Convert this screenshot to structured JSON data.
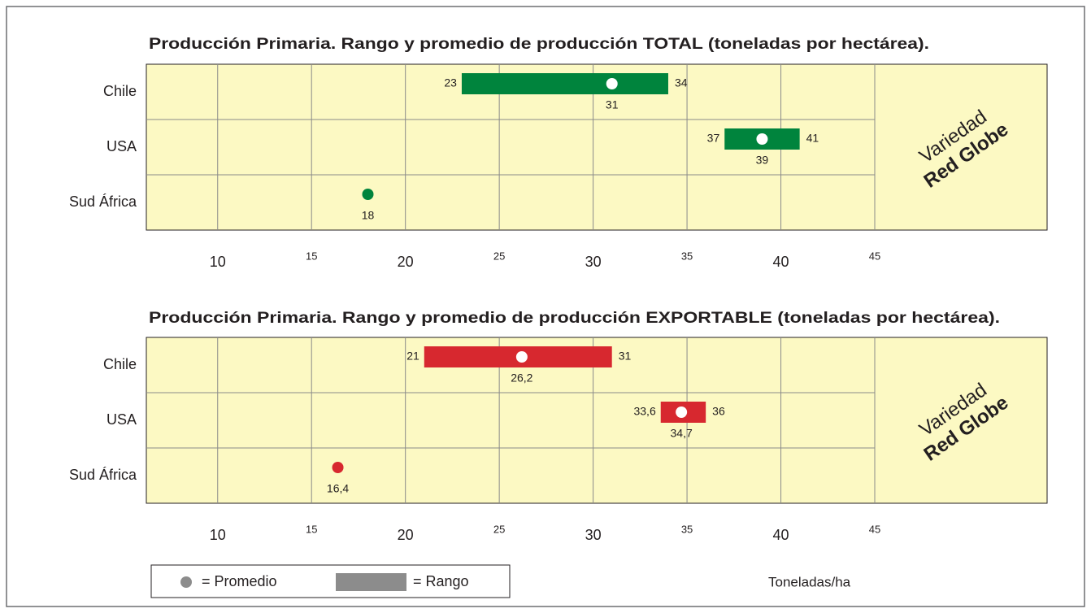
{
  "chart_data": [
    {
      "type": "range",
      "title": "Producción Primaria. Rango y promedio de producción TOTAL (toneladas por hectárea).",
      "categories": [
        "Chile",
        "USA",
        "Sud África"
      ],
      "min": [
        23,
        37,
        null
      ],
      "max": [
        34,
        41,
        null
      ],
      "mean": [
        31,
        39,
        18
      ],
      "color": "#00843d",
      "xlim": [
        6.2,
        45
      ],
      "xticks": [
        10,
        15,
        20,
        25,
        30,
        35,
        40,
        45
      ],
      "grid": true,
      "annotation": [
        "Variedad",
        "Red Globe"
      ]
    },
    {
      "type": "range",
      "title": "Producción Primaria. Rango y promedio de producción EXPORTABLE (toneladas por hectárea).",
      "categories": [
        "Chile",
        "USA",
        "Sud África"
      ],
      "min": [
        21,
        33.6,
        null
      ],
      "max": [
        31,
        36,
        null
      ],
      "mean": [
        26.2,
        34.7,
        16.4
      ],
      "min_labels": [
        null,
        "33,6",
        null
      ],
      "mean_labels": [
        "26,2",
        "34,7",
        "16,4"
      ],
      "color": "#d7282f",
      "xlim": [
        6.2,
        45
      ],
      "xticks": [
        10,
        15,
        20,
        25,
        30,
        35,
        40,
        45
      ],
      "grid": true,
      "annotation": [
        "Variedad",
        "Red Globe"
      ]
    }
  ],
  "legend": {
    "mean": "= Promedio",
    "range": "= Rango",
    "color": "#8c8c8c"
  },
  "x_axis_label": "Toneladas/ha"
}
